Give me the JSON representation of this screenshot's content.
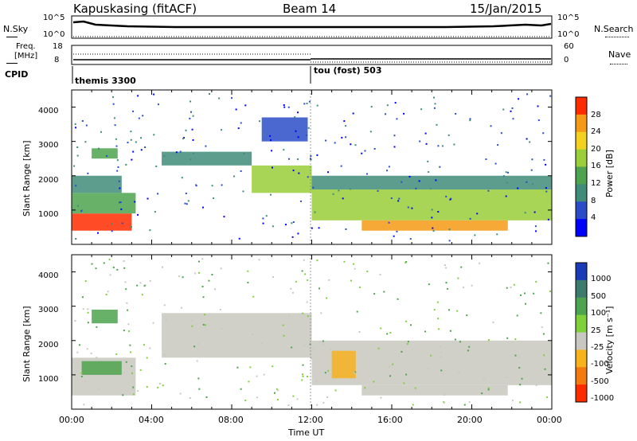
{
  "header": {
    "station": "Kapuskasing (fitACF)",
    "beam": "Beam 14",
    "date": "15/Jan/2015"
  },
  "nsky_panel": {
    "left_label": "N.Sky",
    "right_label": "N.Search",
    "left_ticks": [
      "10^5",
      "10^0"
    ],
    "right_ticks": [
      "10^5",
      "10^0"
    ]
  },
  "freq_panel": {
    "left_label_1": "Freq.",
    "left_label_2": "[MHz]",
    "right_label": "Nave",
    "left_ticks": [
      "18",
      "8"
    ],
    "right_ticks": [
      "60",
      "0"
    ]
  },
  "cpid": {
    "label": "CPID",
    "segments": [
      {
        "text": "themis 3300",
        "start_hour": 0
      },
      {
        "text": "tou (fost) 503",
        "start_hour": 12
      }
    ]
  },
  "power_panel": {
    "ylabel": "Slant Range [km]",
    "yticks": [
      1000,
      2000,
      3000,
      4000
    ],
    "ylim": [
      0,
      4500
    ],
    "colorbar_label": "Power [dB]",
    "colorbar_ticks": [
      "4",
      "8",
      "12",
      "16",
      "20",
      "24",
      "28"
    ],
    "colors": [
      "#0000ff",
      "#2b4cc8",
      "#3f8c7a",
      "#4ea34e",
      "#9ace3a",
      "#f2d21e",
      "#f59a14",
      "#ff2b00"
    ]
  },
  "velocity_panel": {
    "ylabel": "Slant Range [km]",
    "yticks": [
      1000,
      2000,
      3000,
      4000
    ],
    "ylim": [
      0,
      4500
    ],
    "colorbar_label": "Velocity [m s⁻¹]",
    "colorbar_ticks": [
      "1000",
      "500",
      "100",
      "25",
      "-25",
      "-100",
      "-500",
      "-1000"
    ],
    "colors": [
      "#1a3bb8",
      "#3d7b6e",
      "#4ea34e",
      "#7fd13a",
      "#c8c8c0",
      "#f7b21e",
      "#f27a10",
      "#ff2b00"
    ]
  },
  "x_axis": {
    "label": "Time UT",
    "ticks": [
      "00:00",
      "04:00",
      "08:00",
      "12:00",
      "16:00",
      "20:00",
      "00:00"
    ],
    "xlim_hours": [
      0,
      24
    ]
  },
  "chart_data": {
    "type": "heatmap",
    "x_unit": "hours UT",
    "y_unit": "km",
    "power_echo_regions": [
      {
        "t_start": 0.0,
        "t_end": 3.0,
        "r_start": 400,
        "r_end": 900,
        "power_db": 28
      },
      {
        "t_start": 0.0,
        "t_end": 3.2,
        "r_start": 900,
        "r_end": 1500,
        "power_db": 14
      },
      {
        "t_start": 0.0,
        "t_end": 2.5,
        "r_start": 1500,
        "r_end": 2000,
        "power_db": 8
      },
      {
        "t_start": 1.0,
        "t_end": 2.3,
        "r_start": 2500,
        "r_end": 2800,
        "power_db": 12
      },
      {
        "t_start": 4.5,
        "t_end": 9.0,
        "r_start": 2300,
        "r_end": 2700,
        "power_db": 8
      },
      {
        "t_start": 9.0,
        "t_end": 12.0,
        "r_start": 1500,
        "r_end": 2300,
        "power_db": 18
      },
      {
        "t_start": 9.5,
        "t_end": 11.8,
        "r_start": 3000,
        "r_end": 3700,
        "power_db": 6
      },
      {
        "t_start": 12.0,
        "t_end": 24.0,
        "r_start": 700,
        "r_end": 1600,
        "power_db": 16
      },
      {
        "t_start": 14.5,
        "t_end": 21.8,
        "r_start": 400,
        "r_end": 700,
        "power_db": 26
      },
      {
        "t_start": 12.0,
        "t_end": 24.0,
        "r_start": 1600,
        "r_end": 2000,
        "power_db": 8
      }
    ],
    "velocity_echo_regions": [
      {
        "t_start": 0.0,
        "t_end": 3.2,
        "r_start": 400,
        "r_end": 1500,
        "velocity": 0
      },
      {
        "t_start": 0.5,
        "t_end": 2.5,
        "r_start": 1000,
        "r_end": 1400,
        "velocity": 100
      },
      {
        "t_start": 1.0,
        "t_end": 2.3,
        "r_start": 2500,
        "r_end": 2900,
        "velocity": 100
      },
      {
        "t_start": 4.5,
        "t_end": 12.0,
        "r_start": 1500,
        "r_end": 2800,
        "velocity": 0
      },
      {
        "t_start": 12.0,
        "t_end": 24.0,
        "r_start": 700,
        "r_end": 2000,
        "velocity": 0
      },
      {
        "t_start": 13.0,
        "t_end": 14.2,
        "r_start": 900,
        "r_end": 1700,
        "velocity": -100
      },
      {
        "t_start": 14.5,
        "t_end": 21.8,
        "r_start": 400,
        "r_end": 700,
        "velocity": 0
      }
    ]
  }
}
